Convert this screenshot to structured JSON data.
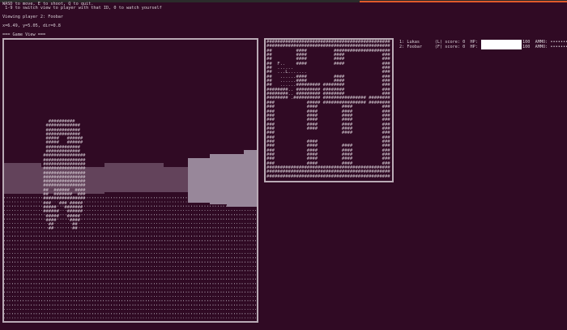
{
  "colors": {
    "background": "#300a24",
    "accent": "#e05a2b",
    "wall_dark": "#63435b",
    "wall_light": "#98879a",
    "hp_bar": "#ffffff"
  },
  "header": {
    "line1": "WASD to move, E to shoot, Q to quit.",
    "line2": " 1-9 to switch view to player with that ID, 0 to watch yourself",
    "viewing": "Viewing player 2: Foobar",
    "position": "x=6.49, y=5.05, dir=0.8",
    "game_view_title": "=== Game View ==="
  },
  "sprite": [
    "   ##########    ",
    "  #############  ",
    "  #############  ",
    "  #############  ",
    "  #####   ###### ",
    "  #####   ###### ",
    "  #############  ",
    "  #############  ",
    " ################",
    " ################",
    " ################",
    " ################",
    " ################",
    " ################",
    " ################",
    " ################",
    " ##  ######  ####",
    " ##  #######  ###",
    " ################",
    " ###   ### ##### ",
    " #####   ####### ",
    " ######   ###### ",
    "  #####   #####  ",
    "  ####     ####  ",
    "   ##       ##   ",
    "   ##       ##   "
  ],
  "map": [
    "##############################################",
    "##############################################",
    "##         ####          #####################",
    "##         ####          ####              ###",
    "##         ####          ####              ###",
    "##  F..    ####          ####              ###",
    "##  ......                                 ###",
    "##  ...L.......                            ###",
    "##   ......####          ####              ###",
    "##   ......####          ####              ###",
    "##   ......######### ########              ###",
    "########.. ######### ########              ###",
    "########.. ######### ########              ###",
    "######## .########## ################ ########",
    "###            ##### ################ ########",
    "###            ####         ####           ###",
    "###            ####         ####           ###",
    "###            ####         ####           ###",
    "###            ####         ####           ###",
    "###            ####         ####           ###",
    "###            ####         ####           ###",
    "###                         ####           ###",
    "###                                        ###",
    "###            ####                        ###",
    "###            ####         ####           ###",
    "###            ####         ####           ###",
    "###            ####         ####           ###",
    "###            ####         ####           ###",
    "###            ####         ####           ###",
    "##############################################",
    "##############################################",
    "##############################################"
  ],
  "players": [
    {
      "id": "1: Lukas",
      "symbol": "(L)",
      "score_label": "score: 0",
      "hp_label": "HP:",
      "hp": 100,
      "hp_text": "100",
      "ammo_label": "AMMO:",
      "ammo": "••••••••••"
    },
    {
      "id": "2: Foobar",
      "symbol": "(F)",
      "score_label": "score: 0",
      "hp_label": "HP:",
      "hp": 100,
      "hp_text": "100",
      "ammo_label": "AMMO:",
      "ammo": "••••••••••"
    }
  ]
}
